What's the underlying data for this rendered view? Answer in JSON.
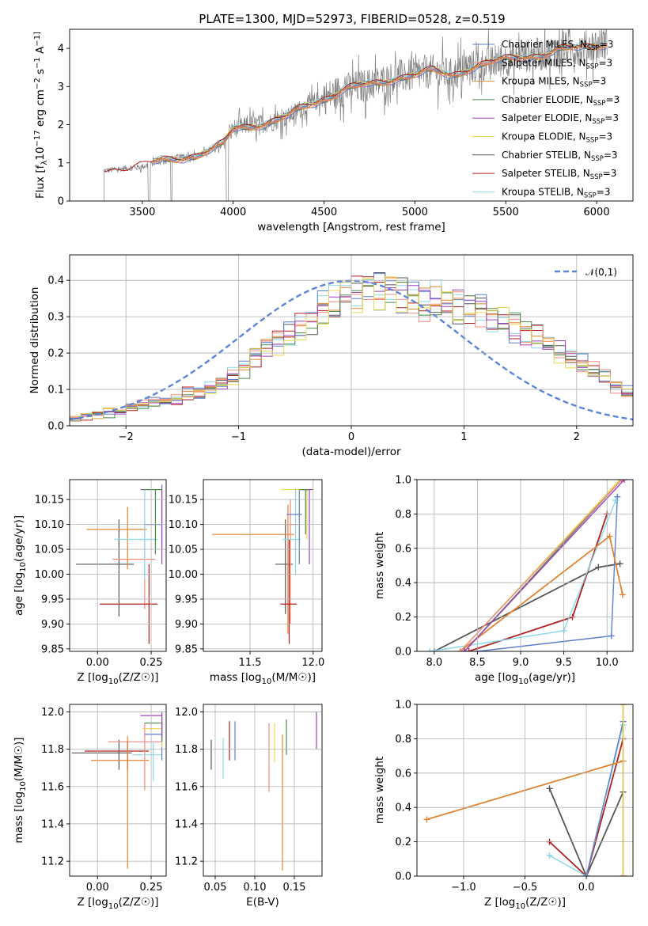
{
  "figure": {
    "title": "PLATE=1300, MJD=52973, FIBERID=0528, z=0.519"
  },
  "models": [
    {
      "label": "Chabrier MILES, N",
      "sub": "SSP",
      "suffix": "=3",
      "color": "#5b7fce"
    },
    {
      "label": "Salpeter MILES, N",
      "sub": "SSP",
      "suffix": "=3",
      "color": "#f08a80"
    },
    {
      "label": "Kroupa MILES, N",
      "sub": "SSP",
      "suffix": "=3",
      "color": "#e0842f"
    },
    {
      "label": "Chabrier ELODIE, N",
      "sub": "SSP",
      "suffix": "=3",
      "color": "#4a8a4a"
    },
    {
      "label": "Salpeter ELODIE, N",
      "sub": "SSP",
      "suffix": "=3",
      "color": "#a040c0"
    },
    {
      "label": "Kroupa ELODIE, N",
      "sub": "SSP",
      "suffix": "=3",
      "color": "#e8d850"
    },
    {
      "label": "Chabrier STELIB, N",
      "sub": "SSP",
      "suffix": "=3",
      "color": "#555555"
    },
    {
      "label": "Salpeter STELIB, N",
      "sub": "SSP",
      "suffix": "=3",
      "color": "#b21e1e"
    },
    {
      "label": "Kroupa STELIB, N",
      "sub": "SSP",
      "suffix": "=3",
      "color": "#88d8e8"
    }
  ],
  "chart_data": [
    {
      "id": "spectrum",
      "type": "line",
      "xlabel": "wavelength [Angstrom, rest frame]",
      "ylabel": "Flux [f_λ10^-17 erg cm^-2 s^-1 A^-1]",
      "xlim": [
        3100,
        6200
      ],
      "ylim": [
        0,
        4.5
      ],
      "xticks": [
        3500,
        4000,
        4500,
        5000,
        5500,
        6000
      ],
      "yticks": [
        0,
        1,
        2,
        3,
        4
      ],
      "data_color": "#808080",
      "continuum_knots": {
        "x": [
          3300,
          3400,
          3500,
          3600,
          3700,
          3800,
          3900,
          3950,
          4000,
          4100,
          4200,
          4300,
          4400,
          4500,
          4600,
          4700,
          4800,
          4900,
          5000,
          5100,
          5200,
          5300,
          5400,
          5500,
          5600,
          5700,
          5800,
          5900,
          6000,
          6050
        ],
        "y": [
          0.8,
          0.85,
          0.9,
          1.05,
          1.15,
          1.2,
          1.35,
          1.5,
          1.9,
          2.0,
          2.05,
          2.2,
          2.5,
          2.7,
          2.9,
          3.0,
          3.1,
          3.25,
          3.3,
          3.4,
          3.3,
          3.5,
          3.6,
          3.7,
          3.8,
          3.85,
          3.95,
          4.0,
          4.1,
          4.15
        ]
      }
    },
    {
      "id": "residuals",
      "type": "histogram",
      "xlabel": "(data-model)/error",
      "ylabel": "Normed distribution",
      "xlim": [
        -2.5,
        2.5
      ],
      "ylim": [
        0,
        0.47
      ],
      "xticks": [
        -2,
        -1,
        0,
        1,
        2
      ],
      "yticks": [
        0.0,
        0.1,
        0.2,
        0.3,
        0.4
      ],
      "legend": "𝒩(0,1)",
      "legend_position": "top-right",
      "bin_width": 0.1,
      "bin_start": -2.5,
      "base_values": [
        0.02,
        0.025,
        0.03,
        0.035,
        0.04,
        0.05,
        0.06,
        0.065,
        0.07,
        0.075,
        0.085,
        0.09,
        0.1,
        0.12,
        0.14,
        0.16,
        0.19,
        0.21,
        0.23,
        0.25,
        0.27,
        0.3,
        0.32,
        0.34,
        0.36,
        0.37,
        0.38,
        0.37,
        0.36,
        0.35,
        0.34,
        0.34,
        0.35,
        0.34,
        0.33,
        0.32,
        0.31,
        0.3,
        0.29,
        0.27,
        0.25,
        0.24,
        0.22,
        0.2,
        0.19,
        0.17,
        0.15,
        0.13,
        0.11,
        0.09
      ]
    },
    {
      "id": "age-vs-Z",
      "type": "errorbar",
      "xlabel": "Z [log10(Z/Z☉)]",
      "ylabel": "age  [log10(age/yr)]",
      "xlim": [
        -0.13,
        0.32
      ],
      "ylim": [
        9.845,
        10.19
      ],
      "xticks": [
        0.0,
        0.25
      ],
      "xticklabels": [
        "0.00",
        "0.25"
      ],
      "yticks": [
        9.85,
        9.9,
        9.95,
        10.0,
        10.05,
        10.1,
        10.15
      ],
      "points": [
        {
          "x": 0.1,
          "y": 10.02,
          "xerr": [
            0.2,
            0.07
          ],
          "yerr": [
            0.105,
            0.09
          ],
          "model": 6
        },
        {
          "x": 0.22,
          "y": 10.03,
          "xerr": [
            0.15,
            0.05
          ],
          "yerr": [
            0.1,
            0.08
          ],
          "model": 1
        },
        {
          "x": 0.14,
          "y": 10.09,
          "xerr": [
            0.19,
            0.09
          ],
          "yerr": [
            0.08,
            0.045
          ],
          "model": 2
        },
        {
          "x": 0.22,
          "y": 10.07,
          "xerr": [
            0.14,
            0.06
          ],
          "yerr": [
            0.08,
            0.1
          ],
          "model": 8
        },
        {
          "x": 0.24,
          "y": 9.94,
          "xerr": [
            0.23,
            0.04
          ],
          "yerr": [
            0.08,
            0.08
          ],
          "model": 7
        },
        {
          "x": 0.3,
          "y": 10.1,
          "xerr": [
            0.08,
            0.0
          ],
          "yerr": [
            0.05,
            0.08
          ],
          "model": 0
        },
        {
          "x": 0.3,
          "y": 10.17,
          "xerr": [
            0.08,
            0.0
          ],
          "yerr": [
            0.07,
            0.0
          ],
          "model": 5
        },
        {
          "x": 0.3,
          "y": 10.17,
          "xerr": [
            0.1,
            0.0
          ],
          "yerr": [
            0.15,
            0.0
          ],
          "model": 4
        },
        {
          "x": 0.27,
          "y": 10.17,
          "xerr": [
            0.06,
            0.03
          ],
          "yerr": [
            0.13,
            0.0
          ],
          "model": 3
        }
      ]
    },
    {
      "id": "age-vs-mass",
      "type": "errorbar",
      "xlabel": "mass [log10(M/M☉)]",
      "ylabel": "",
      "xlim": [
        11.13,
        12.07
      ],
      "ylim": [
        9.845,
        10.19
      ],
      "xticks": [
        11.5,
        12.0
      ],
      "xticklabels": [
        "11.5",
        "12.0"
      ],
      "yticks": [
        9.85,
        9.9,
        9.95,
        10.0,
        10.05,
        10.1,
        10.15
      ],
      "points": [
        {
          "x": 11.78,
          "y": 10.02,
          "xerr": [
            0.08,
            0.06
          ],
          "yerr": [
            0.1,
            0.09
          ],
          "model": 6
        },
        {
          "x": 11.8,
          "y": 10.08,
          "xerr": [
            0.6,
            0.05
          ],
          "yerr": [
            0.2,
            0.06
          ],
          "model": 2
        },
        {
          "x": 11.82,
          "y": 10.1,
          "xerr": [
            0.05,
            0.06
          ],
          "yerr": [
            0.2,
            0.05
          ],
          "model": 1
        },
        {
          "x": 11.81,
          "y": 9.94,
          "xerr": [
            0.07,
            0.06
          ],
          "yerr": [
            0.08,
            0.13
          ],
          "model": 7
        },
        {
          "x": 11.86,
          "y": 10.07,
          "xerr": [
            0.1,
            0.04
          ],
          "yerr": [
            0.07,
            0.1
          ],
          "model": 8
        },
        {
          "x": 11.89,
          "y": 10.12,
          "xerr": [
            0.1,
            0.02
          ],
          "yerr": [
            0.1,
            0.05
          ],
          "model": 0
        },
        {
          "x": 11.95,
          "y": 10.17,
          "xerr": [
            0.2,
            0.01
          ],
          "yerr": [
            0.1,
            0.0
          ],
          "model": 5
        },
        {
          "x": 11.97,
          "y": 10.17,
          "xerr": [
            0.05,
            0.03
          ],
          "yerr": [
            0.15,
            0.0
          ],
          "model": 4
        },
        {
          "x": 11.94,
          "y": 10.17,
          "xerr": [
            0.05,
            0.02
          ],
          "yerr": [
            0.09,
            0.0
          ],
          "model": 3
        }
      ]
    },
    {
      "id": "massweight-vs-age",
      "type": "line",
      "xlabel": "age  [log10(age/yr)]",
      "ylabel": "mass weight",
      "xlim": [
        7.8,
        10.3
      ],
      "ylim": [
        0,
        1.0
      ],
      "xticks": [
        8.0,
        8.5,
        9.0,
        9.5,
        10.0
      ],
      "yticks": [
        0.0,
        0.2,
        0.4,
        0.6,
        0.8,
        1.0
      ],
      "series": [
        {
          "model": 6,
          "x": [
            8.0,
            9.9,
            10.15
          ],
          "y": [
            0.0,
            0.49,
            0.51
          ]
        },
        {
          "model": 0,
          "x": [
            8.5,
            10.05,
            10.12
          ],
          "y": [
            0.0,
            0.09,
            0.9
          ]
        },
        {
          "model": 7,
          "x": [
            8.4,
            9.6,
            10.0
          ],
          "y": [
            0.0,
            0.2,
            0.8
          ]
        },
        {
          "model": 8,
          "x": [
            7.95,
            9.5,
            10.1
          ],
          "y": [
            0.0,
            0.12,
            0.88
          ]
        },
        {
          "model": 2,
          "x": [
            8.3,
            10.03,
            10.18
          ],
          "y": [
            0.0,
            0.67,
            0.33
          ]
        },
        {
          "model": 5,
          "x": [
            8.3,
            10.15
          ],
          "y": [
            0.0,
            1.0
          ]
        },
        {
          "model": 3,
          "x": [
            8.35,
            10.17
          ],
          "y": [
            0.0,
            1.0
          ]
        },
        {
          "model": 1,
          "x": [
            8.3,
            10.17
          ],
          "y": [
            0.0,
            1.0
          ]
        },
        {
          "model": 4,
          "x": [
            8.35,
            10.2
          ],
          "y": [
            0.0,
            1.0
          ]
        }
      ]
    },
    {
      "id": "mass-vs-Z",
      "type": "errorbar",
      "xlabel": "Z [log10(Z/Z☉)]",
      "ylabel": "mass [log10(M/M☉)]",
      "xlim": [
        -0.13,
        0.32
      ],
      "ylim": [
        11.12,
        12.04
      ],
      "xticks": [
        0.0,
        0.25
      ],
      "xticklabels": [
        "0.00",
        "0.25"
      ],
      "yticks": [
        11.2,
        11.4,
        11.6,
        11.8,
        12.0
      ],
      "points": [
        {
          "x": 0.1,
          "y": 11.78,
          "xerr": [
            0.22,
            0.06
          ],
          "yerr": [
            0.09,
            0.07
          ],
          "model": 6
        },
        {
          "x": 0.14,
          "y": 11.79,
          "xerr": [
            0.2,
            0.1
          ],
          "yerr": [
            0.1,
            0.05
          ],
          "model": 7
        },
        {
          "x": 0.14,
          "y": 11.74,
          "xerr": [
            0.17,
            0.1
          ],
          "yerr": [
            0.58,
            0.13
          ],
          "model": 2
        },
        {
          "x": 0.22,
          "y": 11.84,
          "xerr": [
            0.17,
            0.08
          ],
          "yerr": [
            0.26,
            0.1
          ],
          "model": 1
        },
        {
          "x": 0.26,
          "y": 11.77,
          "xerr": [
            0.1,
            0.04
          ],
          "yerr": [
            0.14,
            0.07
          ],
          "model": 8
        },
        {
          "x": 0.3,
          "y": 11.88,
          "xerr": [
            0.08,
            0.0
          ],
          "yerr": [
            0.14,
            0.1
          ],
          "model": 0
        },
        {
          "x": 0.3,
          "y": 11.91,
          "xerr": [
            0.09,
            0.0
          ],
          "yerr": [
            0.1,
            0.03
          ],
          "model": 5
        },
        {
          "x": 0.3,
          "y": 11.94,
          "xerr": [
            0.08,
            0.0
          ],
          "yerr": [
            0.1,
            0.02
          ],
          "model": 3
        },
        {
          "x": 0.3,
          "y": 11.98,
          "xerr": [
            0.1,
            0.0
          ],
          "yerr": [
            0.12,
            0.02
          ],
          "model": 4
        }
      ]
    },
    {
      "id": "mass-vs-EBV",
      "type": "errorbar",
      "xlabel": "E(B-V)",
      "ylabel": "",
      "xlim": [
        0.035,
        0.185
      ],
      "ylim": [
        11.12,
        12.04
      ],
      "xticks": [
        0.05,
        0.1,
        0.15
      ],
      "xticklabels": [
        "0.05",
        "0.10",
        "0.15"
      ],
      "yticks": [
        11.2,
        11.4,
        11.6,
        11.8,
        12.0
      ],
      "points": [
        {
          "x": 0.045,
          "y": 11.78,
          "xerr": [
            0,
            0
          ],
          "yerr": [
            0.09,
            0.07
          ],
          "model": 6
        },
        {
          "x": 0.06,
          "y": 11.76,
          "xerr": [
            0,
            0
          ],
          "yerr": [
            0.12,
            0.1
          ],
          "model": 8
        },
        {
          "x": 0.068,
          "y": 11.84,
          "xerr": [
            0,
            0
          ],
          "yerr": [
            0.1,
            0.11
          ],
          "model": 7
        },
        {
          "x": 0.075,
          "y": 11.84,
          "xerr": [
            0,
            0
          ],
          "yerr": [
            0.1,
            0.11
          ],
          "model": 0
        },
        {
          "x": 0.118,
          "y": 11.75,
          "xerr": [
            0,
            0
          ],
          "yerr": [
            0.18,
            0.19
          ],
          "model": 1
        },
        {
          "x": 0.125,
          "y": 11.83,
          "xerr": [
            0,
            0
          ],
          "yerr": [
            0.1,
            0.11
          ],
          "model": 5
        },
        {
          "x": 0.135,
          "y": 11.75,
          "xerr": [
            0,
            0
          ],
          "yerr": [
            0.6,
            0.13
          ],
          "model": 2
        },
        {
          "x": 0.14,
          "y": 11.87,
          "xerr": [
            0,
            0
          ],
          "yerr": [
            0.1,
            0.09
          ],
          "model": 3
        },
        {
          "x": 0.178,
          "y": 11.9,
          "xerr": [
            0,
            0
          ],
          "yerr": [
            0.1,
            0.1
          ],
          "model": 4
        }
      ]
    },
    {
      "id": "massweight-vs-Z",
      "type": "line",
      "xlabel": "Z [log10(Z/Z☉)]",
      "ylabel": "mass weight",
      "xlim": [
        -1.38,
        0.38
      ],
      "ylim": [
        0,
        1.0
      ],
      "xticks": [
        -1.0,
        -0.5,
        0.0
      ],
      "xticklabels": [
        "−1.0",
        "−0.5",
        "0.0"
      ],
      "yticks": [
        0.0,
        0.2,
        0.4,
        0.6,
        0.8,
        1.0
      ],
      "series": [
        {
          "model": 6,
          "x": [
            -0.3,
            0.0,
            0.3
          ],
          "y": [
            0.51,
            0.0,
            0.49
          ]
        },
        {
          "model": 7,
          "x": [
            -0.3,
            0.0,
            0.3
          ],
          "y": [
            0.2,
            0.0,
            0.8
          ]
        },
        {
          "model": 8,
          "x": [
            -0.3,
            0.0,
            0.3
          ],
          "y": [
            0.12,
            0.0,
            0.88
          ]
        },
        {
          "model": 0,
          "x": [
            0.0,
            0.3
          ],
          "y": [
            0.0,
            0.9
          ]
        },
        {
          "model": 2,
          "x": [
            -1.3,
            0.3
          ],
          "y": [
            0.33,
            0.67
          ]
        },
        {
          "model": 3,
          "x": [
            0.3,
            0.3
          ],
          "y": [
            0.0,
            1.0
          ]
        },
        {
          "model": 4,
          "x": [
            0.3,
            0.3
          ],
          "y": [
            0.0,
            1.0
          ]
        },
        {
          "model": 1,
          "x": [
            0.3,
            0.3
          ],
          "y": [
            0.0,
            1.0
          ]
        },
        {
          "model": 5,
          "x": [
            0.3,
            0.3
          ],
          "y": [
            0.0,
            1.0
          ]
        }
      ]
    }
  ]
}
